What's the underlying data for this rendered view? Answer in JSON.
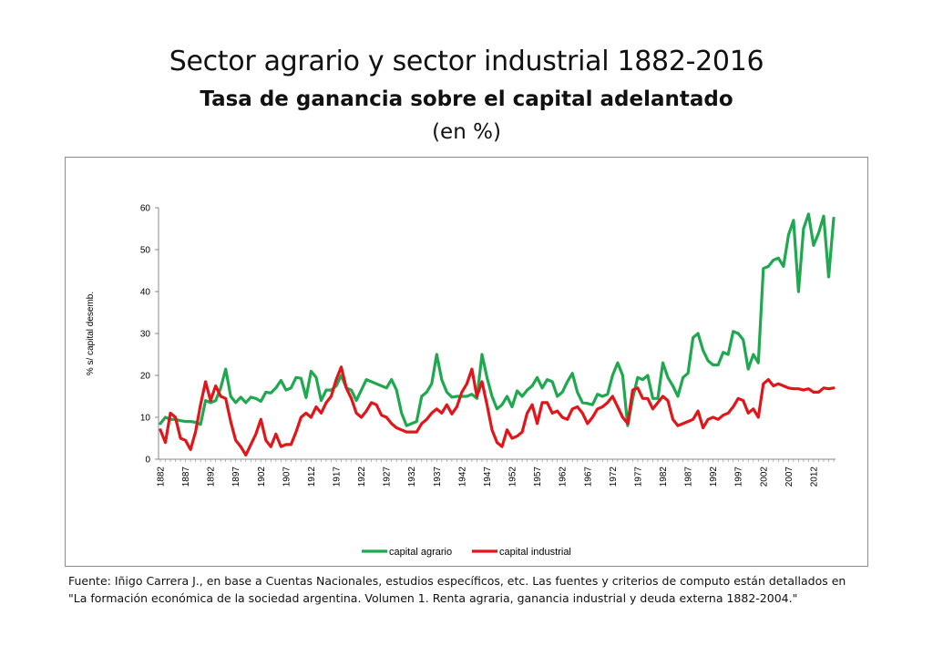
{
  "header": {
    "title": "Sector agrario y sector industrial 1882-2016",
    "subtitle": "Tasa de ganancia sobre el capital adelantado",
    "unit": "(en %)"
  },
  "footer": {
    "source_line1": "Fuente: Iñigo Carrera J.,  en base a Cuentas Nacionales, estudios específicos, etc. Las fuentes y criterios de computo están detallados en",
    "source_line2": "\"La formación económica de la sociedad argentina. Volumen 1. Renta agraria, ganancia industrial y deuda externa 1882-2004.\""
  },
  "chart_data": {
    "type": "line",
    "title": "",
    "xlabel": "",
    "ylabel": "% s/ capital desemb.",
    "ylim": [
      0,
      60
    ],
    "yticks": [
      0,
      10,
      20,
      30,
      40,
      50,
      60
    ],
    "xlim": [
      1882,
      2016
    ],
    "xticks": [
      1882,
      1887,
      1892,
      1897,
      1902,
      1907,
      1912,
      1917,
      1922,
      1927,
      1932,
      1937,
      1942,
      1947,
      1952,
      1957,
      1962,
      1967,
      1972,
      1977,
      1982,
      1987,
      1992,
      1997,
      2002,
      2007,
      2012
    ],
    "grid": false,
    "legend_position": "bottom",
    "series": [
      {
        "name": "capital agrario",
        "color": "#1fa84f",
        "x": [
          1882,
          1883,
          1884,
          1885,
          1886,
          1887,
          1888,
          1889,
          1890,
          1891,
          1892,
          1893,
          1894,
          1895,
          1896,
          1897,
          1898,
          1899,
          1900,
          1901,
          1902,
          1903,
          1904,
          1905,
          1906,
          1907,
          1908,
          1909,
          1910,
          1911,
          1912,
          1913,
          1914,
          1915,
          1916,
          1917,
          1918,
          1919,
          1920,
          1921,
          1922,
          1923,
          1924,
          1925,
          1926,
          1927,
          1928,
          1929,
          1930,
          1931,
          1932,
          1933,
          1934,
          1935,
          1936,
          1937,
          1938,
          1939,
          1940,
          1941,
          1942,
          1943,
          1944,
          1945,
          1946,
          1947,
          1948,
          1949,
          1950,
          1951,
          1952,
          1953,
          1954,
          1955,
          1956,
          1957,
          1958,
          1959,
          1960,
          1961,
          1962,
          1963,
          1964,
          1965,
          1966,
          1967,
          1968,
          1969,
          1970,
          1971,
          1972,
          1973,
          1974,
          1975,
          1976,
          1977,
          1978,
          1979,
          1980,
          1981,
          1982,
          1983,
          1984,
          1985,
          1986,
          1987,
          1988,
          1989,
          1990,
          1991,
          1992,
          1993,
          1994,
          1995,
          1996,
          1997,
          1998,
          1999,
          2000,
          2001,
          2002,
          2003,
          2004,
          2005,
          2006,
          2007,
          2008,
          2009,
          2010,
          2011,
          2012,
          2013,
          2014,
          2015,
          2016
        ],
        "values": [
          8.5,
          10,
          9.5,
          9.5,
          9.2,
          9,
          9,
          8.8,
          8.3,
          14,
          13.5,
          14,
          17,
          21.5,
          15,
          13.5,
          14.8,
          13.5,
          14.8,
          14.5,
          13.8,
          16,
          15.8,
          17,
          18.8,
          16.5,
          17,
          19.5,
          19.3,
          14.7,
          21,
          19.5,
          14,
          16.5,
          16.5,
          17.5,
          20,
          17,
          16.5,
          14,
          16.5,
          19,
          18.5,
          18,
          17.5,
          17,
          19,
          16.5,
          11,
          8,
          8.5,
          9,
          15,
          16,
          18,
          25,
          19,
          16,
          14.8,
          15,
          15,
          15,
          15.5,
          14.5,
          25,
          19.5,
          15,
          12,
          13,
          15,
          12.5,
          16.3,
          15,
          16.5,
          17.5,
          19.5,
          17,
          19,
          18.5,
          15,
          16,
          18.5,
          20.5,
          16,
          13.5,
          13.3,
          13,
          15.5,
          15,
          15.5,
          20,
          23,
          20,
          8,
          14.5,
          19.5,
          19,
          20,
          14.5,
          14.5,
          23,
          19.5,
          17.5,
          15,
          19.5,
          20.5,
          29,
          30,
          26,
          23.5,
          22.5,
          22.5,
          25.5,
          25,
          30.5,
          30,
          28.5,
          21.5,
          25,
          23,
          45.5,
          46,
          47.5,
          48,
          46,
          53.5,
          57,
          40,
          55,
          58.5,
          51,
          54,
          58,
          43.5,
          57.5
        ]
      },
      {
        "name": "capital industrial",
        "color": "#e0161b",
        "x": [
          1882,
          1883,
          1884,
          1885,
          1886,
          1887,
          1888,
          1889,
          1890,
          1891,
          1892,
          1893,
          1894,
          1895,
          1896,
          1897,
          1898,
          1899,
          1900,
          1901,
          1902,
          1903,
          1904,
          1905,
          1906,
          1907,
          1908,
          1909,
          1910,
          1911,
          1912,
          1913,
          1914,
          1915,
          1916,
          1917,
          1918,
          1919,
          1920,
          1921,
          1922,
          1923,
          1924,
          1925,
          1926,
          1927,
          1928,
          1929,
          1930,
          1931,
          1932,
          1933,
          1934,
          1935,
          1936,
          1937,
          1938,
          1939,
          1940,
          1941,
          1942,
          1943,
          1944,
          1945,
          1946,
          1947,
          1948,
          1949,
          1950,
          1951,
          1952,
          1953,
          1954,
          1955,
          1956,
          1957,
          1958,
          1959,
          1960,
          1961,
          1962,
          1963,
          1964,
          1965,
          1966,
          1967,
          1968,
          1969,
          1970,
          1971,
          1972,
          1973,
          1974,
          1975,
          1976,
          1977,
          1978,
          1979,
          1980,
          1981,
          1982,
          1983,
          1984,
          1985,
          1986,
          1987,
          1988,
          1989,
          1990,
          1991,
          1992,
          1993,
          1994,
          1995,
          1996,
          1997,
          1998,
          1999,
          2000,
          2001,
          2002,
          2003,
          2004,
          2005,
          2006,
          2007,
          2008,
          2009,
          2010,
          2011,
          2012,
          2013,
          2014,
          2015,
          2016
        ],
        "values": [
          7,
          4,
          11,
          10,
          5,
          4.5,
          2.3,
          6.5,
          13,
          18.5,
          14,
          17.5,
          15,
          14.5,
          9,
          4.5,
          3,
          1,
          3.5,
          6,
          9.5,
          4.5,
          3,
          6,
          3,
          3.5,
          3.5,
          6.5,
          10,
          11,
          10,
          12.5,
          11,
          13.5,
          15,
          19,
          22,
          17,
          14.5,
          11,
          10,
          11.5,
          13.5,
          13,
          10.5,
          10,
          8.5,
          7.5,
          7,
          6.5,
          6.5,
          6.5,
          8.5,
          9.5,
          11,
          12,
          11,
          13,
          10.8,
          12.5,
          16,
          18,
          21.5,
          15,
          18.5,
          13,
          7,
          4,
          3,
          7,
          5,
          5.5,
          6.5,
          11,
          13,
          8.5,
          13.5,
          13.5,
          11,
          11.5,
          10,
          9.5,
          12,
          12.5,
          11,
          8.5,
          10,
          12,
          12.5,
          13.5,
          15,
          12.5,
          10,
          8.5,
          16.5,
          17,
          14.5,
          14.5,
          12,
          13.5,
          15,
          14,
          9.5,
          8,
          8.5,
          9,
          9.5,
          11.5,
          7.5,
          9.5,
          10,
          9.5,
          10.5,
          11,
          12.5,
          14.5,
          14,
          11,
          12,
          10,
          18,
          19,
          17.5,
          18,
          17.5,
          17,
          16.8,
          16.8,
          16.5,
          16.8,
          16,
          16,
          17,
          16.8,
          17
        ]
      }
    ]
  }
}
